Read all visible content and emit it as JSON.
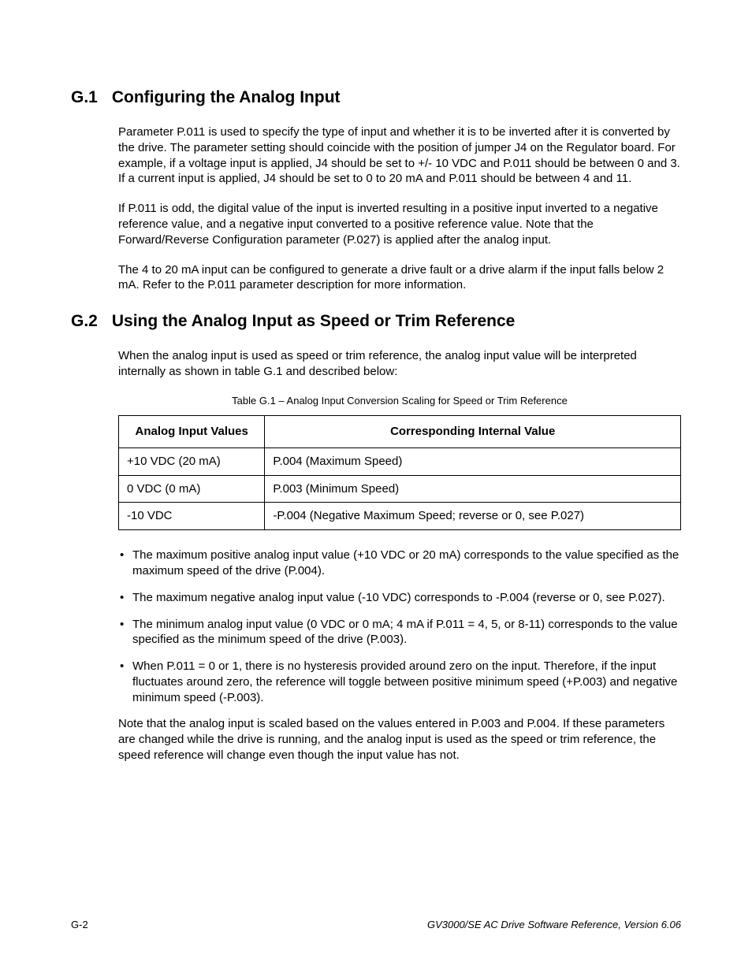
{
  "sections": {
    "g1": {
      "number": "G.1",
      "title": "Configuring the Analog Input",
      "paragraphs": [
        "Parameter P.011 is used to specify the type of input and whether it is to be inverted after it is converted by the drive. The parameter setting should coincide with the position of jumper J4 on the Regulator board. For example, if a voltage input is applied, J4 should be set to +/- 10 VDC and P.011 should be between 0 and 3. If a current input is applied, J4 should be set to 0 to 20 mA and P.011 should be between 4 and 11.",
        "If P.011 is odd, the digital value of the input is inverted resulting in a positive input inverted to a negative reference value, and a negative input converted to a positive reference value. Note that the Forward/Reverse Configuration parameter (P.027) is applied after the analog input.",
        "The 4 to 20 mA input can be configured to generate a drive fault or a drive alarm if the input falls below 2 mA. Refer to the P.011 parameter description for more information."
      ]
    },
    "g2": {
      "number": "G.2",
      "title": "Using the Analog Input as Speed or Trim Reference",
      "intro": "When the analog input is used as speed or trim reference, the analog input value will be interpreted internally as shown in table G.1 and described below:",
      "table": {
        "caption": "Table G.1 – Analog Input Conversion Scaling for Speed or Trim Reference",
        "columns": [
          "Analog Input Values",
          "Corresponding Internal Value"
        ],
        "rows": [
          [
            "+10 VDC (20 mA)",
            "P.004 (Maximum Speed)"
          ],
          [
            "0 VDC (0 mA)",
            "P.003 (Minimum Speed)"
          ],
          [
            "-10 VDC",
            "-P.004 (Negative Maximum Speed; reverse or 0, see P.027)"
          ]
        ]
      },
      "bullets": [
        "The maximum positive analog input value (+10 VDC or 20 mA) corresponds to the value specified as the maximum speed of the drive (P.004).",
        "The maximum negative analog input value (-10 VDC) corresponds to -P.004 (reverse or 0, see P.027).",
        "The minimum analog input value (0 VDC or 0 mA; 4 mA if P.011 = 4, 5, or 8-11) corresponds to the value specified as the minimum speed of the drive (P.003).",
        "When P.011 = 0 or 1, there is no hysteresis provided around zero on the input. Therefore, if the input fluctuates around zero, the reference will toggle between positive minimum speed (+P.003) and negative minimum speed (-P.003)."
      ],
      "closing": "Note that the analog input is scaled based on the values entered in P.003 and P.004. If these parameters are changed while the drive is running, and the analog input is used as the speed or trim reference, the speed reference will change even though the input value has not."
    }
  },
  "footer": {
    "page_number": "G-2",
    "doc_ref": "GV3000/SE AC Drive Software Reference, Version 6.06"
  }
}
